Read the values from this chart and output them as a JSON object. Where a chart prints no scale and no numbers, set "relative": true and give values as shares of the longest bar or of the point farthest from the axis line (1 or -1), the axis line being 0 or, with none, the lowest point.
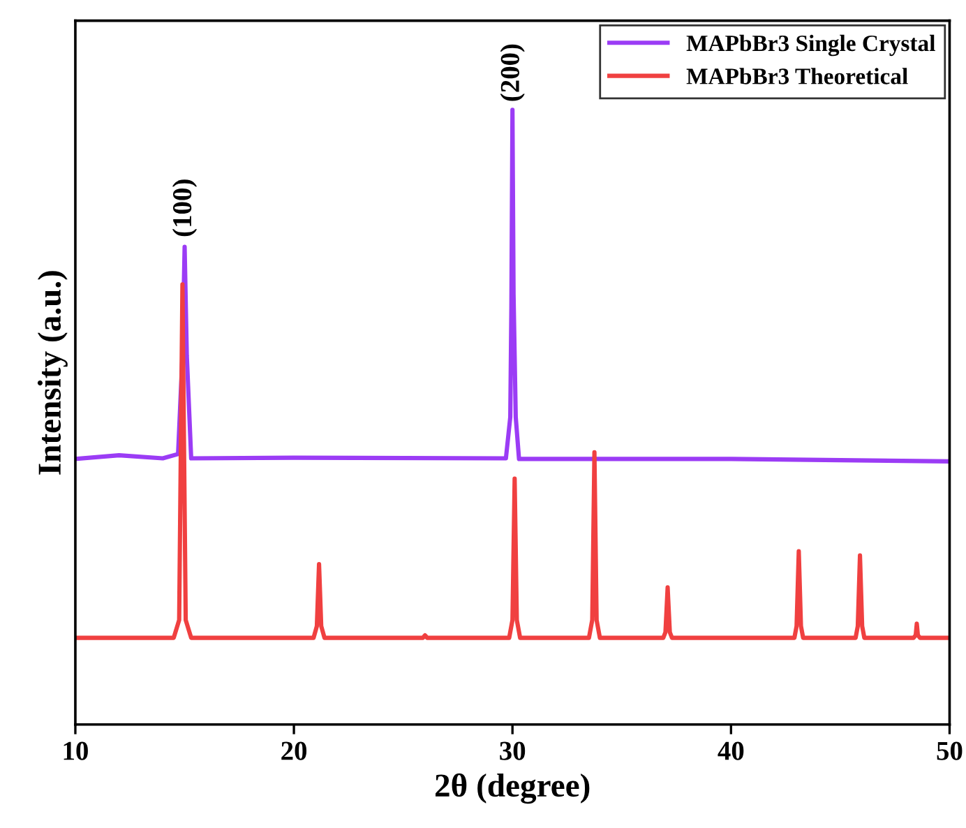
{
  "chart_data": {
    "type": "line",
    "relative": true,
    "xlabel": "2θ (degree)",
    "ylabel": "Intensity (a.u.)",
    "xlim": [
      10,
      50
    ],
    "xticks": [
      10,
      20,
      30,
      40,
      50
    ],
    "legend": "top right",
    "grid": false,
    "series": [
      {
        "name": "MAPbBr3 Single Crystal",
        "color": "#9b3cf5",
        "x": [
          10,
          12,
          14,
          14.7,
          14.9,
          15.0,
          15.1,
          15.3,
          20,
          29.7,
          29.9,
          29.95,
          30.0,
          30.05,
          30.15,
          30.3,
          40,
          45,
          50
        ],
        "values": [
          0.432,
          0.438,
          0.433,
          0.44,
          0.6,
          0.777,
          0.6,
          0.433,
          0.434,
          0.433,
          0.5,
          0.677,
          1,
          0.7,
          0.5,
          0.432,
          0.432,
          0.43,
          0.428
        ]
      },
      {
        "name": "MAPbBr3 Theoretical",
        "color": "#f04040",
        "x": [
          10,
          14.5,
          14.75,
          14.9,
          15.05,
          15.3,
          20.9,
          21.05,
          21.15,
          21.25,
          21.4,
          25.9,
          26.0,
          26.1,
          29.85,
          30.0,
          30.1,
          30.2,
          30.35,
          33.5,
          33.65,
          33.75,
          33.85,
          34.0,
          36.9,
          37.0,
          37.1,
          37.2,
          37.3,
          42.9,
          43.0,
          43.1,
          43.2,
          43.3,
          45.7,
          45.8,
          45.9,
          46.0,
          46.1,
          48.35,
          48.45,
          48.5,
          48.55,
          48.65,
          50
        ],
        "values": [
          0.141,
          0.141,
          0.17,
          0.716,
          0.17,
          0.141,
          0.141,
          0.16,
          0.261,
          0.16,
          0.141,
          0.141,
          0.145,
          0.141,
          0.141,
          0.17,
          0.4,
          0.17,
          0.141,
          0.141,
          0.17,
          0.443,
          0.17,
          0.141,
          0.141,
          0.15,
          0.223,
          0.15,
          0.141,
          0.141,
          0.16,
          0.282,
          0.16,
          0.141,
          0.141,
          0.16,
          0.275,
          0.16,
          0.141,
          0.141,
          0.145,
          0.164,
          0.145,
          0.141,
          0.141
        ]
      }
    ],
    "annotations": [
      {
        "text": "(100)",
        "x": 15,
        "y": 0.78
      },
      {
        "text": "(200)",
        "x": 30,
        "y": 1
      }
    ]
  }
}
